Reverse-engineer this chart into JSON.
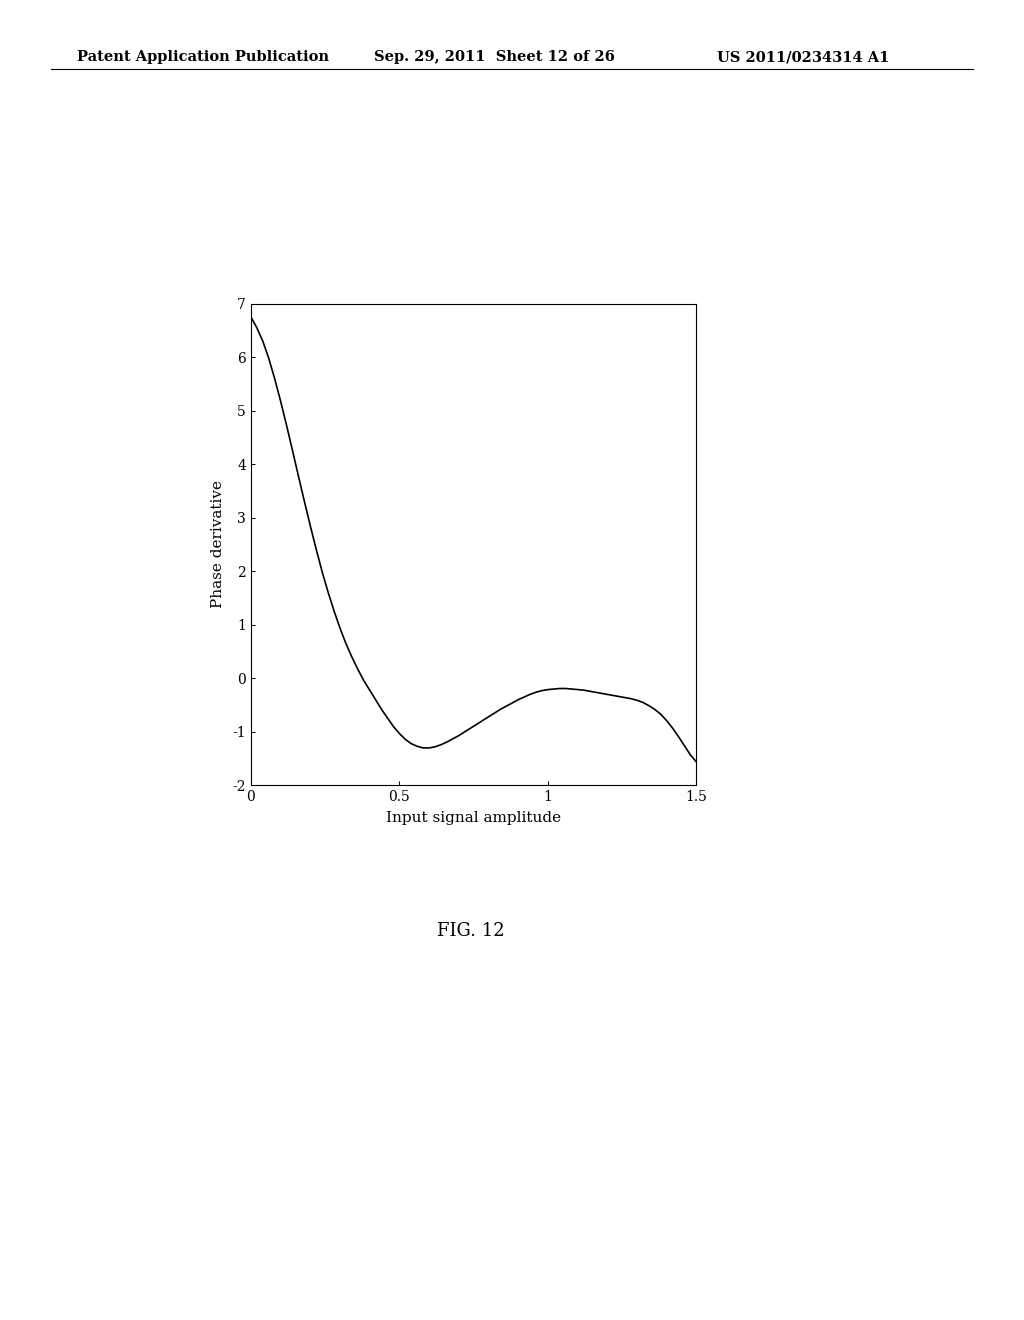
{
  "header_left": "Patent Application Publication",
  "header_mid": "Sep. 29, 2011  Sheet 12 of 26",
  "header_right": "US 2011/0234314 A1",
  "fig_label": "FIG. 12",
  "xlabel": "Input signal amplitude",
  "ylabel": "Phase derivative",
  "xlim": [
    0,
    1.5
  ],
  "ylim": [
    -2,
    7
  ],
  "xticks": [
    0,
    0.5,
    1,
    1.5
  ],
  "yticks": [
    -2,
    -1,
    0,
    1,
    2,
    3,
    4,
    5,
    6,
    7
  ],
  "line_color": "#000000",
  "bg_color": "#ffffff",
  "curve_x": [
    0.0,
    0.02,
    0.04,
    0.06,
    0.08,
    0.1,
    0.12,
    0.14,
    0.16,
    0.18,
    0.2,
    0.22,
    0.24,
    0.26,
    0.28,
    0.3,
    0.32,
    0.34,
    0.36,
    0.38,
    0.4,
    0.42,
    0.44,
    0.46,
    0.48,
    0.5,
    0.52,
    0.54,
    0.56,
    0.58,
    0.6,
    0.62,
    0.64,
    0.66,
    0.68,
    0.7,
    0.72,
    0.74,
    0.76,
    0.78,
    0.8,
    0.82,
    0.84,
    0.86,
    0.88,
    0.9,
    0.92,
    0.94,
    0.96,
    0.98,
    1.0,
    1.02,
    1.04,
    1.06,
    1.08,
    1.1,
    1.12,
    1.14,
    1.16,
    1.18,
    1.2,
    1.22,
    1.24,
    1.26,
    1.28,
    1.3,
    1.32,
    1.34,
    1.36,
    1.38,
    1.4,
    1.42,
    1.44,
    1.46,
    1.48,
    1.5
  ],
  "curve_y": [
    6.75,
    6.55,
    6.3,
    5.98,
    5.6,
    5.18,
    4.73,
    4.26,
    3.78,
    3.31,
    2.85,
    2.41,
    1.99,
    1.61,
    1.26,
    0.94,
    0.65,
    0.4,
    0.17,
    -0.04,
    -0.22,
    -0.4,
    -0.58,
    -0.74,
    -0.9,
    -1.03,
    -1.14,
    -1.22,
    -1.27,
    -1.3,
    -1.3,
    -1.28,
    -1.24,
    -1.19,
    -1.13,
    -1.07,
    -1.0,
    -0.93,
    -0.86,
    -0.79,
    -0.72,
    -0.65,
    -0.58,
    -0.52,
    -0.46,
    -0.4,
    -0.35,
    -0.3,
    -0.26,
    -0.23,
    -0.21,
    -0.2,
    -0.19,
    -0.19,
    -0.2,
    -0.21,
    -0.22,
    -0.24,
    -0.26,
    -0.28,
    -0.3,
    -0.32,
    -0.34,
    -0.36,
    -0.38,
    -0.41,
    -0.45,
    -0.51,
    -0.58,
    -0.67,
    -0.79,
    -0.93,
    -1.09,
    -1.26,
    -1.43,
    -1.56
  ]
}
